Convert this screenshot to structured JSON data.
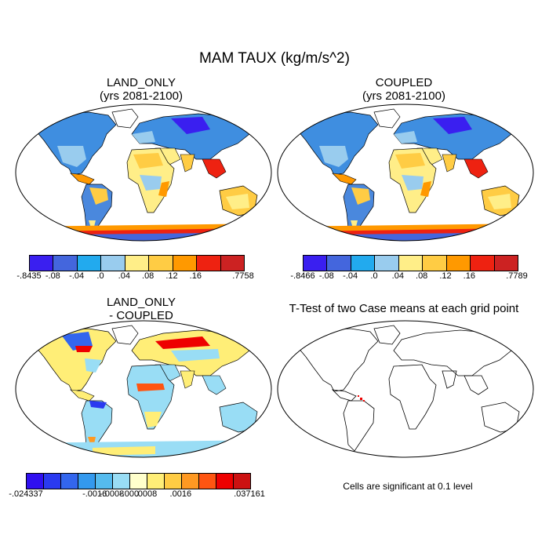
{
  "title": "MAM TAUX (kg/m/s^2)",
  "panels": {
    "land_only": {
      "line1": "LAND_ONLY",
      "line2": "(yrs 2081-2100)"
    },
    "coupled": {
      "line1": "COUPLED",
      "line2": "(yrs 2081-2100)"
    },
    "difference": {
      "line1": "LAND_ONLY",
      "line2": "- COUPLED"
    },
    "ttest": {
      "title": "T-Test of two Case means at each grid point",
      "note": "Cells are significant at 0.1 level"
    }
  },
  "colorbars": {
    "land_only": {
      "colors": [
        "#3a1ff0",
        "#4466dd",
        "#22aaee",
        "#99ccee",
        "#ffee88",
        "#ffcc44",
        "#ff9900",
        "#ee2211",
        "#cc2222"
      ],
      "labels": [
        "-.8435",
        "-.08",
        "-.04",
        ".0",
        ".04",
        ".08",
        ".12",
        ".16",
        ".7758"
      ]
    },
    "coupled": {
      "colors": [
        "#3a1ff0",
        "#4466dd",
        "#22aaee",
        "#99ccee",
        "#ffee88",
        "#ffcc44",
        "#ff9900",
        "#ee2211",
        "#cc2222"
      ],
      "labels": [
        "-.8466",
        "-.08",
        "-.04",
        ".0",
        ".04",
        ".08",
        ".12",
        ".16",
        ".7789"
      ]
    },
    "difference": {
      "colors": [
        "#3010f0",
        "#2a3af0",
        "#3366ee",
        "#3399ee",
        "#55bbee",
        "#99ddf5",
        "#ffffcc",
        "#ffee77",
        "#ffcc44",
        "#ff9922",
        "#ff5511",
        "#ee0000",
        "#cc1111"
      ],
      "labels": [
        "-.024337",
        "-.0016",
        "-.0008",
        "-.000",
        ".0008",
        ".0016",
        ".037161"
      ]
    }
  }
}
